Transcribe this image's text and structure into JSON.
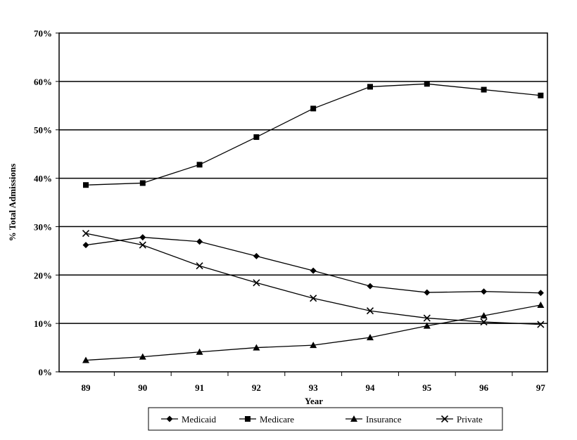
{
  "chart_data": {
    "type": "line",
    "title": "",
    "xlabel": "Year",
    "ylabel": "% Total Admissions",
    "categories": [
      "89",
      "90",
      "91",
      "92",
      "93",
      "94",
      "95",
      "96",
      "97"
    ],
    "ylim": [
      0,
      70
    ],
    "yticks": [
      "0%",
      "10%",
      "20%",
      "30%",
      "40%",
      "50%",
      "60%",
      "70%"
    ],
    "grid": "horizontal",
    "legend_position": "bottom",
    "series": [
      {
        "name": "Medicaid",
        "marker": "diamond",
        "values": [
          26.2,
          27.8,
          26.9,
          23.9,
          20.9,
          17.7,
          16.4,
          16.6,
          16.3
        ]
      },
      {
        "name": "Medicare",
        "marker": "square",
        "values": [
          38.6,
          39.0,
          42.8,
          48.5,
          54.4,
          58.9,
          59.5,
          58.3,
          57.1
        ]
      },
      {
        "name": "Insurance",
        "marker": "triangle",
        "values": [
          2.4,
          3.1,
          4.1,
          5.0,
          5.5,
          7.1,
          9.5,
          11.6,
          13.8
        ]
      },
      {
        "name": "Private",
        "marker": "x",
        "values": [
          28.6,
          26.2,
          21.9,
          18.4,
          15.2,
          12.6,
          11.1,
          10.3,
          9.8
        ]
      }
    ]
  }
}
